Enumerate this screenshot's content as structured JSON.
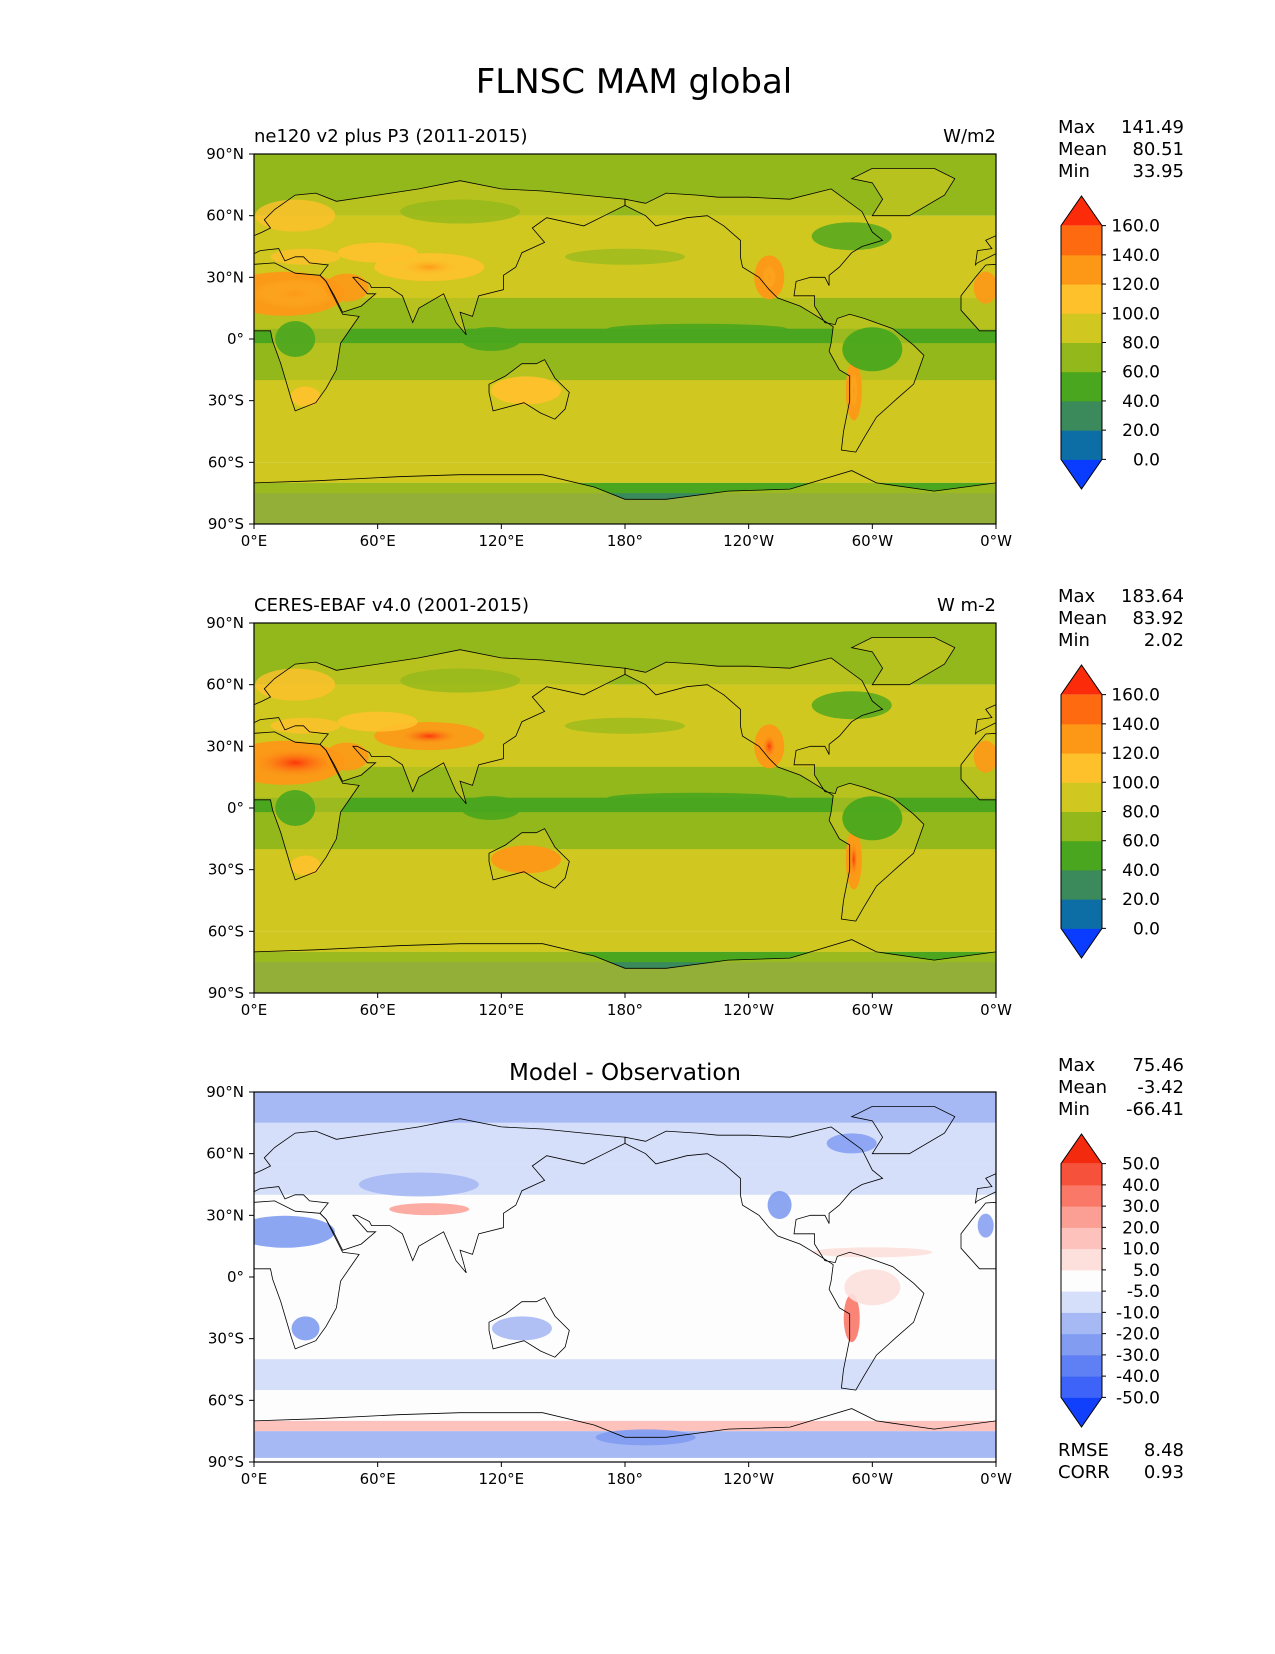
{
  "figure_title": "FLNSC MAM global",
  "chart_data": [
    {
      "type": "heatmap",
      "left_title": "ne120 v2 plus P3 (2011-2015)",
      "units": "W/m2",
      "stats": {
        "labels": [
          "Max",
          "Mean",
          "Min"
        ],
        "values": [
          "141.49",
          "80.51",
          "33.95"
        ]
      },
      "colorbar": {
        "levels": [
          "0.0",
          "20.0",
          "40.0",
          "60.0",
          "80.0",
          "100.0",
          "120.0",
          "140.0",
          "160.0"
        ],
        "colors": [
          "#0a3cff",
          "#0c6ea4",
          "#3a8a5c",
          "#4aa61e",
          "#93b81c",
          "#d0c820",
          "#fec12c",
          "#fd9817",
          "#fd6a10",
          "#fc2b0a"
        ]
      },
      "xticks": [
        "0°E",
        "60°E",
        "120°E",
        "180°",
        "120°W",
        "60°W",
        "0°W"
      ],
      "yticks": [
        "90°N",
        "60°N",
        "30°N",
        "0°",
        "30°S",
        "60°S",
        "90°S"
      ]
    },
    {
      "type": "heatmap",
      "left_title": "CERES-EBAF v4.0 (2001-2015)",
      "units": "W m-2",
      "stats": {
        "labels": [
          "Max",
          "Mean",
          "Min"
        ],
        "values": [
          "183.64",
          "83.92",
          "2.02"
        ]
      },
      "colorbar": {
        "levels": [
          "0.0",
          "20.0",
          "40.0",
          "60.0",
          "80.0",
          "100.0",
          "120.0",
          "140.0",
          "160.0"
        ],
        "colors": [
          "#0a3cff",
          "#0c6ea4",
          "#3a8a5c",
          "#4aa61e",
          "#93b81c",
          "#d0c820",
          "#fec12c",
          "#fd9817",
          "#fd6a10",
          "#fc2b0a"
        ]
      },
      "xticks": [
        "0°E",
        "60°E",
        "120°E",
        "180°",
        "120°W",
        "60°W",
        "0°W"
      ],
      "yticks": [
        "90°N",
        "60°N",
        "30°N",
        "0°",
        "30°S",
        "60°S",
        "90°S"
      ]
    },
    {
      "type": "heatmap",
      "center_title": "Model - Observation",
      "stats": {
        "labels": [
          "Max",
          "Mean",
          "Min"
        ],
        "values": [
          "75.46",
          "-3.42",
          "-66.41"
        ]
      },
      "bottom_stats": {
        "labels": [
          "RMSE",
          "CORR"
        ],
        "values": [
          "8.48",
          "0.93"
        ]
      },
      "colorbar": {
        "levels": [
          "-50.0",
          "-40.0",
          "-30.0",
          "-20.0",
          "-10.0",
          "-5.0",
          "5.0",
          "10.0",
          "20.0",
          "30.0",
          "40.0",
          "50.0"
        ],
        "colors": [
          "#1040fb",
          "#3d63f8",
          "#5f80f4",
          "#819cf1",
          "#a7b9f4",
          "#d6dffa",
          "#fdfdfd",
          "#fde0dc",
          "#fcc2bb",
          "#fb9e93",
          "#f97868",
          "#f5513b",
          "#f42a0f"
        ]
      },
      "xticks": [
        "0°E",
        "60°E",
        "120°E",
        "180°",
        "120°W",
        "60°W",
        "0°W"
      ],
      "yticks": [
        "90°N",
        "60°N",
        "30°N",
        "0°",
        "30°S",
        "60°S",
        "90°S"
      ]
    }
  ]
}
